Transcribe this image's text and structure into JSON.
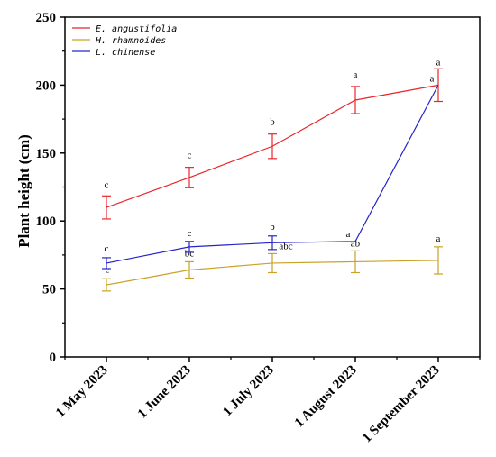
{
  "chart_data": {
    "type": "line",
    "title": "",
    "xlabel": "",
    "ylabel": "Plant height (cm)",
    "categories": [
      "1 May 2023",
      "1 June 2023",
      "1 July 2023",
      "1 August 2023",
      "1 September 2023"
    ],
    "ylim": [
      0,
      250
    ],
    "yticks": [
      0,
      50,
      100,
      150,
      200,
      250
    ],
    "grid": false,
    "legend_position": "top-left",
    "series": [
      {
        "name": "E. angustifolia",
        "color": "#e8262b",
        "values": [
          110,
          132,
          155,
          189,
          200
        ],
        "errors": [
          8.5,
          7.5,
          9,
          10,
          12
        ],
        "labels": [
          "c",
          "c",
          "b",
          "a",
          "a"
        ]
      },
      {
        "name": "H. rhamnoides",
        "color": "#c9a227",
        "values": [
          53,
          64,
          69,
          70,
          71
        ],
        "errors": [
          4.5,
          6,
          7,
          8,
          10
        ],
        "labels": [
          "c",
          "bc",
          "abc",
          "ab",
          "a"
        ]
      },
      {
        "name": "L. chinense",
        "color": "#2424c8",
        "values": [
          69,
          81,
          84,
          85,
          200
        ],
        "errors": [
          4,
          4,
          5,
          0,
          0
        ],
        "labels": [
          "c",
          "c",
          "b",
          "a",
          "a"
        ]
      }
    ]
  }
}
